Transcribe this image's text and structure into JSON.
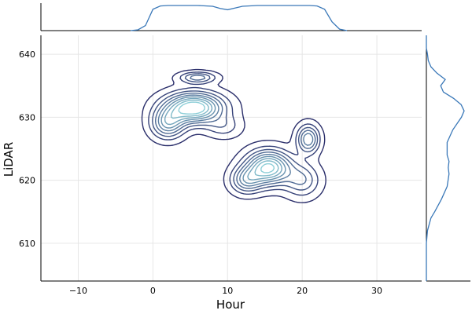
{
  "chart_data": {
    "type": "contour",
    "xlabel": "Hour",
    "ylabel": "LiDAR",
    "xlim": [
      -15,
      36
    ],
    "ylim": [
      604,
      643
    ],
    "xticks": [
      -10,
      0,
      10,
      20,
      30
    ],
    "xtick_labels": [
      "−10",
      "0",
      "10",
      "20",
      "30"
    ],
    "yticks": [
      610,
      620,
      630,
      640
    ],
    "ytick_labels": [
      "610",
      "620",
      "630",
      "640"
    ],
    "grid": true,
    "legend": "none",
    "colors": {
      "marginal": "#3a78b8",
      "contour_dark": "#2b2f6b",
      "contour_light": "#8ecfd8"
    },
    "density_components": [
      {
        "x": 5.5,
        "y": 631.5,
        "sx": 2.6,
        "sy": 1.6,
        "w": 1.0
      },
      {
        "x": 2.0,
        "y": 629.0,
        "sx": 1.5,
        "sy": 1.6,
        "w": 0.55
      },
      {
        "x": 6.0,
        "y": 636.3,
        "sx": 1.6,
        "sy": 0.6,
        "w": 0.42
      },
      {
        "x": 15.5,
        "y": 622.0,
        "sx": 2.0,
        "sy": 1.8,
        "w": 0.9
      },
      {
        "x": 12.5,
        "y": 620.0,
        "sx": 1.4,
        "sy": 1.4,
        "w": 0.45
      },
      {
        "x": 20.8,
        "y": 626.5,
        "sx": 1.0,
        "sy": 1.5,
        "w": 0.55
      },
      {
        "x": 20.0,
        "y": 620.0,
        "sx": 1.6,
        "sy": 1.8,
        "w": 0.35
      },
      {
        "x": 9.5,
        "y": 628.5,
        "sx": 1.6,
        "sy": 1.2,
        "w": 0.2
      }
    ],
    "contour_levels": [
      0.05,
      0.15,
      0.25,
      0.35,
      0.45,
      0.55,
      0.65,
      0.75,
      0.85
    ],
    "x_marginal": {
      "x": [
        -3,
        -2,
        -1,
        0,
        1,
        2,
        4,
        6,
        8,
        9,
        10,
        11,
        12,
        14,
        16,
        18,
        20,
        21,
        22,
        23,
        24,
        25,
        26
      ],
      "density": [
        0.0,
        0.03,
        0.2,
        0.85,
        0.98,
        1.0,
        1.0,
        1.0,
        0.97,
        0.88,
        0.83,
        0.9,
        0.97,
        1.0,
        1.0,
        1.0,
        1.0,
        1.0,
        0.98,
        0.85,
        0.35,
        0.06,
        0.0
      ]
    },
    "y_marginal": {
      "y": [
        604,
        610,
        612,
        614,
        615,
        617,
        619,
        621,
        622,
        623,
        624,
        626,
        628,
        630,
        631,
        632,
        633,
        634,
        635,
        636,
        637,
        638,
        639,
        640,
        641,
        643
      ],
      "density": [
        0.0,
        0.0,
        0.03,
        0.12,
        0.22,
        0.4,
        0.55,
        0.6,
        0.58,
        0.6,
        0.55,
        0.55,
        0.7,
        0.93,
        1.0,
        0.92,
        0.72,
        0.45,
        0.38,
        0.5,
        0.28,
        0.12,
        0.05,
        0.03,
        0.0,
        0.0
      ]
    }
  }
}
